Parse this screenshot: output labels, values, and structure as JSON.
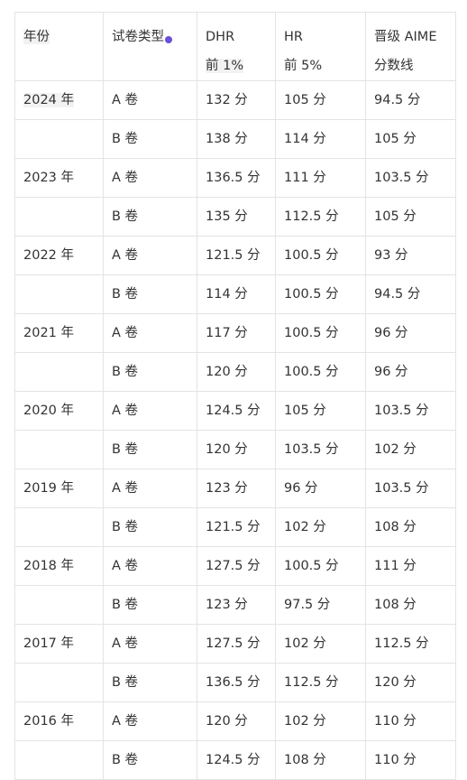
{
  "header": {
    "year": "年份",
    "type": "试卷类型",
    "dhr": "DHR",
    "dhr_sub": "前 1%",
    "hr": "HR",
    "hr_sub": "前 5%",
    "aime": "晋级 AIME",
    "aime_sub": "分数线"
  },
  "rows": [
    {
      "year": "2024 年",
      "type": "A 卷",
      "dhr": "132 分",
      "hr": "105 分",
      "aime": "94.5 分"
    },
    {
      "year": "",
      "type": "B 卷",
      "dhr": "138 分",
      "hr": "114 分",
      "aime": "105 分"
    },
    {
      "year": "2023 年",
      "type": "A 卷",
      "dhr": "136.5 分",
      "hr": "111 分",
      "aime": "103.5 分"
    },
    {
      "year": "",
      "type": "B 卷",
      "dhr": "135 分",
      "hr": "112.5 分",
      "aime": "105 分"
    },
    {
      "year": "2022 年",
      "type": "A 卷",
      "dhr": "121.5 分",
      "hr": "100.5 分",
      "aime": "93 分"
    },
    {
      "year": "",
      "type": "B 卷",
      "dhr": "114 分",
      "hr": "100.5 分",
      "aime": "94.5 分"
    },
    {
      "year": "2021 年",
      "type": "A 卷",
      "dhr": "117 分",
      "hr": "100.5 分",
      "aime": "96 分"
    },
    {
      "year": "",
      "type": "B 卷",
      "dhr": "120 分",
      "hr": "100.5 分",
      "aime": "96 分"
    },
    {
      "year": "2020 年",
      "type": "A 卷",
      "dhr": "124.5 分",
      "hr": "105 分",
      "aime": "103.5 分"
    },
    {
      "year": "",
      "type": "B 卷",
      "dhr": "120 分",
      "hr": "103.5 分",
      "aime": "102 分"
    },
    {
      "year": "2019 年",
      "type": "A 卷",
      "dhr": "123 分",
      "hr": "96 分",
      "aime": "103.5 分"
    },
    {
      "year": "",
      "type": "B 卷",
      "dhr": "121.5 分",
      "hr": "102 分",
      "aime": "108 分"
    },
    {
      "year": "2018 年",
      "type": "A 卷",
      "dhr": "127.5 分",
      "hr": "100.5 分",
      "aime": "111 分"
    },
    {
      "year": "",
      "type": "B 卷",
      "dhr": "123 分",
      "hr": "97.5 分",
      "aime": "108 分"
    },
    {
      "year": "2017 年",
      "type": "A 卷",
      "dhr": "127.5 分",
      "hr": "102 分",
      "aime": "112.5 分"
    },
    {
      "year": "",
      "type": "B 卷",
      "dhr": "136.5 分",
      "hr": "112.5 分",
      "aime": "120 分"
    },
    {
      "year": "2016 年",
      "type": "A 卷",
      "dhr": "120 分",
      "hr": "102 分",
      "aime": "110 分"
    },
    {
      "year": "",
      "type": "B 卷",
      "dhr": "124.5 分",
      "hr": "108 分",
      "aime": "110 分"
    }
  ],
  "colors": {
    "border": "#e3e3e3",
    "highlight": "#f2f2f2",
    "marker": "#6b4fd8",
    "text": "#333333"
  }
}
